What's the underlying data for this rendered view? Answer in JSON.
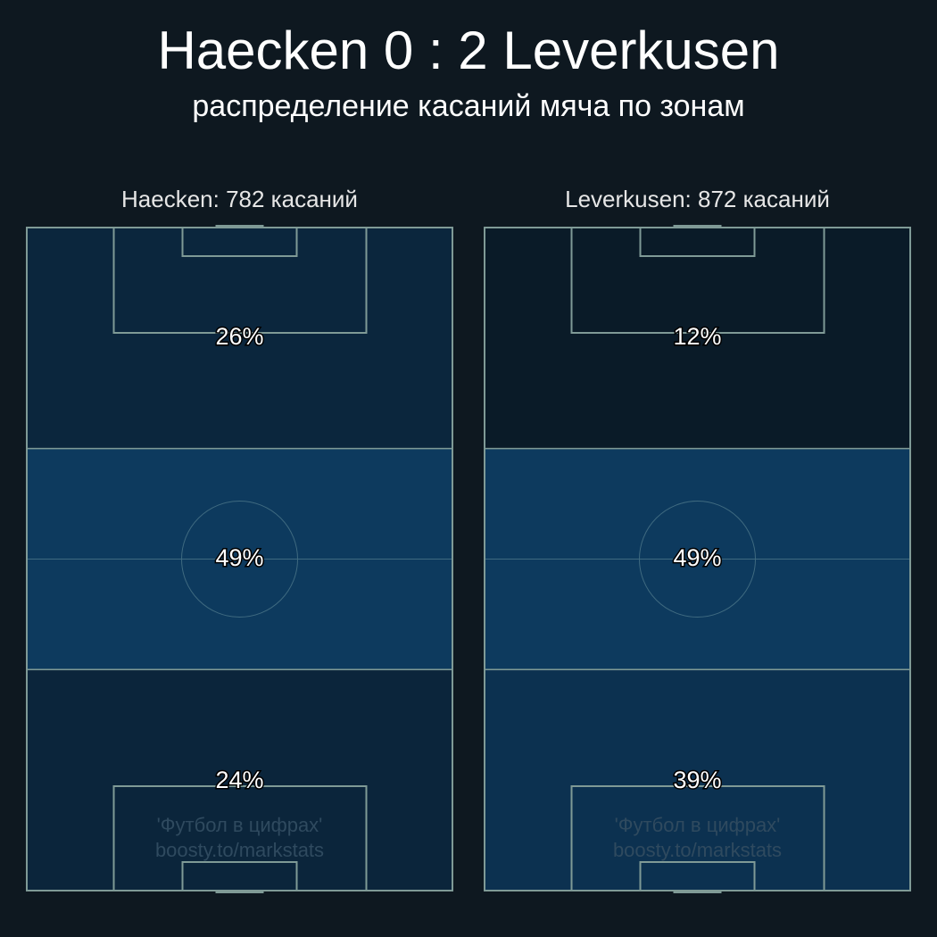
{
  "title": "Haecken 0 : 2 Leverkusen",
  "subtitle": "распределение касаний мяча по зонам",
  "watermark": [
    "'Футбол в цифрах'",
    "boosty.to/markstats"
  ],
  "colors": {
    "background": "#0e1820",
    "lines": "#7f9a96"
  },
  "chart_data": {
    "type": "heatmap",
    "zones": [
      "attacking third",
      "middle third",
      "defensive third"
    ],
    "panels": [
      {
        "title": "Haecken: 782 касаний",
        "team": "Haecken",
        "touches": 782,
        "values": [
          26,
          49,
          24
        ],
        "labels": [
          "26%",
          "49%",
          "24%"
        ],
        "colors": [
          "#0b263d",
          "#0d3a5e",
          "#0b253b"
        ]
      },
      {
        "title": "Leverkusen: 872 касаний",
        "team": "Leverkusen",
        "touches": 872,
        "values": [
          12,
          49,
          39
        ],
        "labels": [
          "12%",
          "49%",
          "39%"
        ],
        "colors": [
          "#0a1b28",
          "#0d3a5e",
          "#0c3150"
        ]
      }
    ]
  }
}
